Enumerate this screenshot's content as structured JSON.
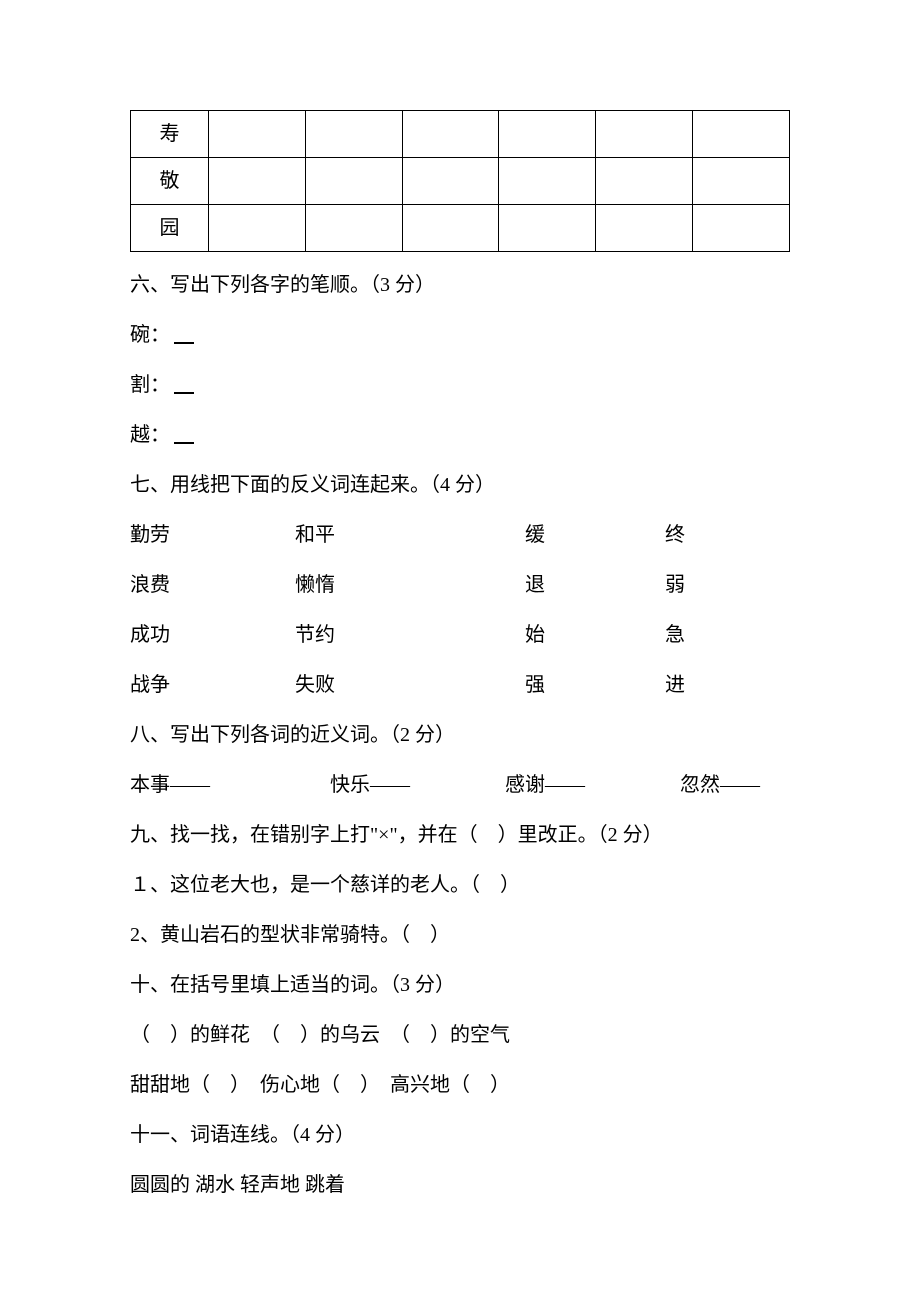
{
  "table": {
    "rows": [
      "寿",
      "敬",
      "园"
    ]
  },
  "section6": {
    "heading": "六、写出下列各字的笔顺。（3 分）",
    "items": [
      {
        "label": "碗：",
        "blank": "＿"
      },
      {
        "label": "割：",
        "blank": "＿"
      },
      {
        "label": "越：",
        "blank": "＿"
      }
    ]
  },
  "section7": {
    "heading": "七、用线把下面的反义词连起来。（4 分）",
    "rows": [
      {
        "c1": "勤劳",
        "c2": "和平",
        "c3": "缓",
        "c4": "终"
      },
      {
        "c1": "浪费",
        "c2": "懒惰",
        "c3": "退",
        "c4": "弱"
      },
      {
        "c1": "成功",
        "c2": "节约",
        "c3": "始",
        "c4": "急"
      },
      {
        "c1": "战争",
        "c2": "失败",
        "c3": "强",
        "c4": "进"
      }
    ]
  },
  "section8": {
    "heading": "八、写出下列各词的近义词。（2 分）",
    "items": {
      "s1": "本事——",
      "s2": "快乐——",
      "s3": "感谢——",
      "s4": "忽然——"
    }
  },
  "section9": {
    "heading": "九、找一找，在错别字上打\"×\"，并在（　）里改正。（2 分）",
    "items": [
      "１、这位老大也，是一个慈详的老人。（　）",
      "2、黄山岩石的型状非常骑特。（　）"
    ]
  },
  "section10": {
    "heading": "十、在括号里填上适当的词。（3 分）",
    "line1": "（　）的鲜花　（　）的乌云　（　）的空气",
    "line2": "甜甜地（　）　伤心地（　）　高兴地（　）"
  },
  "section11": {
    "heading": "十一、词语连线。（4 分）",
    "line1": "圆圆的 湖水 轻声地 跳着"
  }
}
